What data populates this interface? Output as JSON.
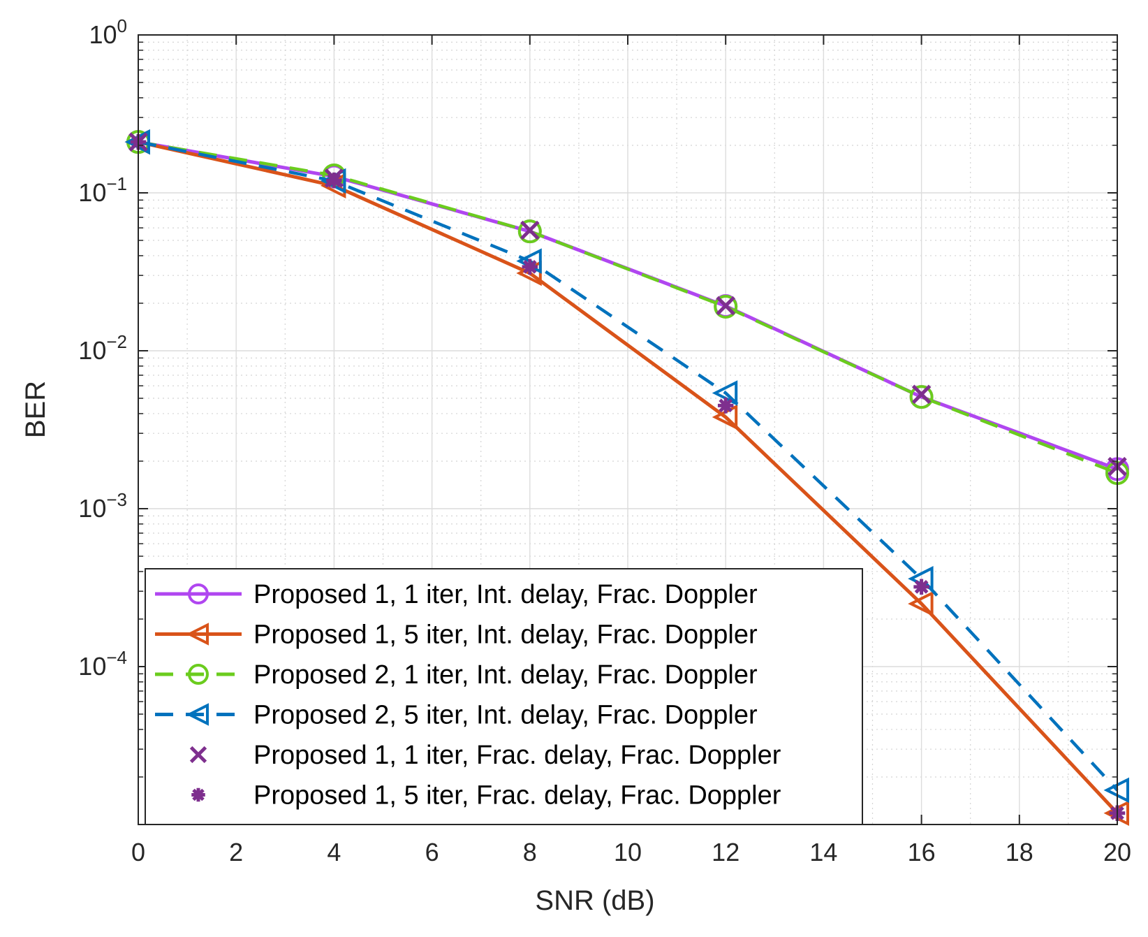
{
  "chart_data": {
    "type": "line",
    "title": "",
    "xlabel": "SNR (dB)",
    "ylabel": "BER",
    "xlim": [
      0,
      20
    ],
    "ylim": [
      1e-05,
      1
    ],
    "yscale": "log",
    "grid": true,
    "minor_grid": true,
    "xticks": [
      0,
      2,
      4,
      6,
      8,
      10,
      12,
      14,
      16,
      18,
      20
    ],
    "xtick_labels": [
      "0",
      "2",
      "4",
      "6",
      "8",
      "10",
      "12",
      "14",
      "16",
      "18",
      "20"
    ],
    "yticks": [
      1,
      0.1,
      0.01,
      0.001,
      0.0001
    ],
    "ytick_labels": [
      {
        "base": "10",
        "exp": "0"
      },
      {
        "base": "10",
        "exp": "−1"
      },
      {
        "base": "10",
        "exp": "−2"
      },
      {
        "base": "10",
        "exp": "−3"
      },
      {
        "base": "10",
        "exp": "−4"
      }
    ],
    "legend_position": "bottom-left",
    "series": [
      {
        "name": "Proposed 1, 1 iter, Int. delay, Frac. Doppler",
        "color": "#b046f0",
        "line": "solid",
        "marker": "circle",
        "x": [
          0,
          4,
          8,
          12,
          16,
          20
        ],
        "values": [
          0.21,
          0.127,
          0.057,
          0.0192,
          0.0051,
          0.00178
        ]
      },
      {
        "name": "Proposed 1, 5 iter, Int. delay, Frac. Doppler",
        "color": "#d95319",
        "line": "solid",
        "marker": "triangle-left",
        "x": [
          0,
          4,
          8,
          12,
          16,
          20
        ],
        "values": [
          0.21,
          0.111,
          0.031,
          0.0038,
          0.00025,
          1.18e-05
        ]
      },
      {
        "name": "Proposed 2, 1 iter, Int. delay, Frac. Doppler",
        "color": "#6bcc1e",
        "line": "dashed",
        "marker": "circle",
        "x": [
          0,
          4,
          8,
          12,
          16,
          20
        ],
        "values": [
          0.21,
          0.129,
          0.057,
          0.019,
          0.0051,
          0.00168
        ]
      },
      {
        "name": "Proposed 2, 5 iter, Int. delay, Frac. Doppler",
        "color": "#0072bd",
        "line": "dashed",
        "marker": "triangle-left",
        "x": [
          0,
          4,
          8,
          12,
          16,
          20
        ],
        "values": [
          0.21,
          0.119,
          0.037,
          0.0054,
          0.00036,
          1.65e-05
        ]
      },
      {
        "name": "Proposed 1, 1 iter, Frac. delay, Frac. Doppler",
        "color": "#7e2f8e",
        "line": "none",
        "marker": "x",
        "x": [
          0,
          4,
          8,
          12,
          16,
          20
        ],
        "values": [
          0.21,
          0.124,
          0.058,
          0.0193,
          0.0053,
          0.00185
        ]
      },
      {
        "name": "Proposed 1, 5 iter, Frac. delay, Frac. Doppler",
        "color": "#7e2f8e",
        "line": "none",
        "marker": "asterisk",
        "x": [
          0,
          4,
          8,
          12,
          16,
          20
        ],
        "values": [
          0.21,
          0.12,
          0.034,
          0.0045,
          0.00032,
          1.18e-05
        ]
      }
    ]
  }
}
